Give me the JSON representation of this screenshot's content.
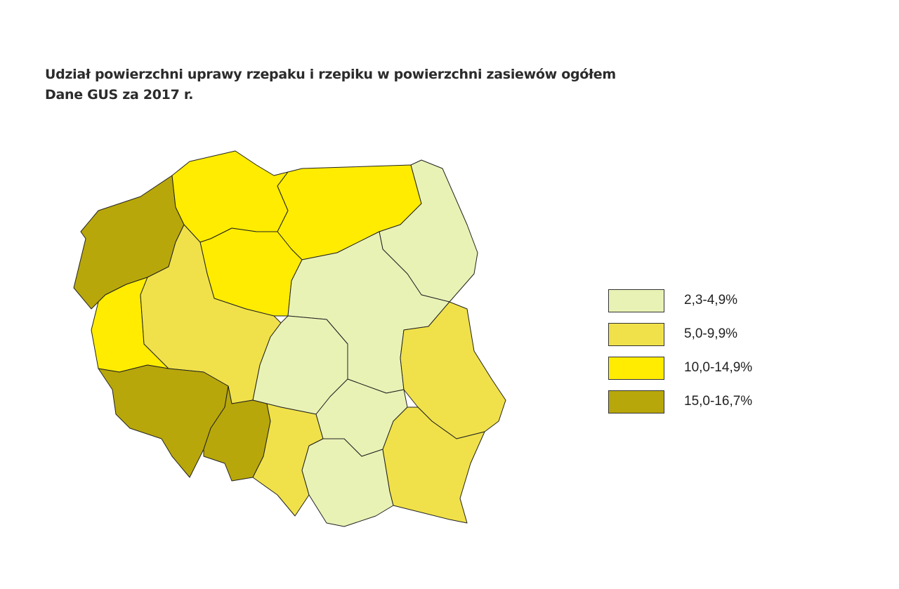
{
  "title": {
    "line1": "Udział powierzchni uprawy rzepaku i rzepiku w powierzchni zasiewów ogółem",
    "line2": "Dane GUS za 2017 r."
  },
  "legend": [
    {
      "label": "2,3-4,9%",
      "color": "#e9f2b5"
    },
    {
      "label": "5,0-9,9%",
      "color": "#f0e14a"
    },
    {
      "label": "10,0-14,9%",
      "color": "#ffec00"
    },
    {
      "label": "15,0-16,7%",
      "color": "#b8a70a"
    }
  ],
  "regions": {
    "zachodniopomorskie": 3,
    "pomorskie": 2,
    "warminsko-mazurskie": 2,
    "podlaskie": 0,
    "kujawsko-pomorskie": 2,
    "lubuskie": 2,
    "wielkopolskie": 1,
    "mazowieckie": 0,
    "lodzkie": 0,
    "lubelskie": 1,
    "dolnoslaskie": 3,
    "opolskie": 3,
    "slaskie": 1,
    "swietokrzyskie": 0,
    "malopolskie": 0,
    "podkarpackie": 1
  }
}
